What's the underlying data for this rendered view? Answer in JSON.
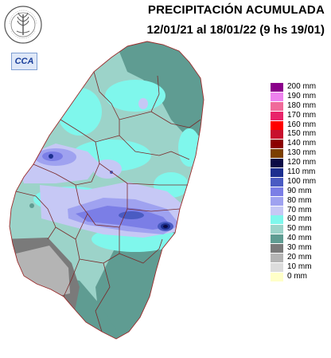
{
  "header": {
    "title": "PRECIPITACIÓN ACUMULADA",
    "period": "12/01/21 al 18/01/22 (9 hs 19/01)"
  },
  "logo": {
    "icon": "wheat-seal-icon",
    "ring_text": "BOLSA DE CEREALES DE ENTRE RIOS"
  },
  "badge": {
    "text": "CCA"
  },
  "legend": {
    "items": [
      {
        "label": "200 mm",
        "color": "#8b008b"
      },
      {
        "label": "190 mm",
        "color": "#ee82ee"
      },
      {
        "label": "180 mm",
        "color": "#f06a9a"
      },
      {
        "label": "170 mm",
        "color": "#e8246a"
      },
      {
        "label": "160 mm",
        "color": "#ff0000"
      },
      {
        "label": "150 mm",
        "color": "#c8102e"
      },
      {
        "label": "140 mm",
        "color": "#8b0000"
      },
      {
        "label": "130 mm",
        "color": "#7b3f00"
      },
      {
        "label": "120 mm",
        "color": "#0b0b45"
      },
      {
        "label": "110 mm",
        "color": "#1c2f8f"
      },
      {
        "label": "100 mm",
        "color": "#4a5bc2"
      },
      {
        "label": "90 mm",
        "color": "#7b7ee6"
      },
      {
        "label": "80 mm",
        "color": "#9fa2f0"
      },
      {
        "label": "70 mm",
        "color": "#c6c8f5"
      },
      {
        "label": "60 mm",
        "color": "#7ff7ec"
      },
      {
        "label": "50 mm",
        "color": "#9cd3c9"
      },
      {
        "label": "40 mm",
        "color": "#5f9c92"
      },
      {
        "label": "30 mm",
        "color": "#7a7a7a"
      },
      {
        "label": "20 mm",
        "color": "#b4b4b4"
      },
      {
        "label": "10 mm",
        "color": "#dcdcdc"
      },
      {
        "label": "0 mm",
        "color": "#ffffc8"
      }
    ]
  },
  "map": {
    "region": "Entre Ríos"
  }
}
